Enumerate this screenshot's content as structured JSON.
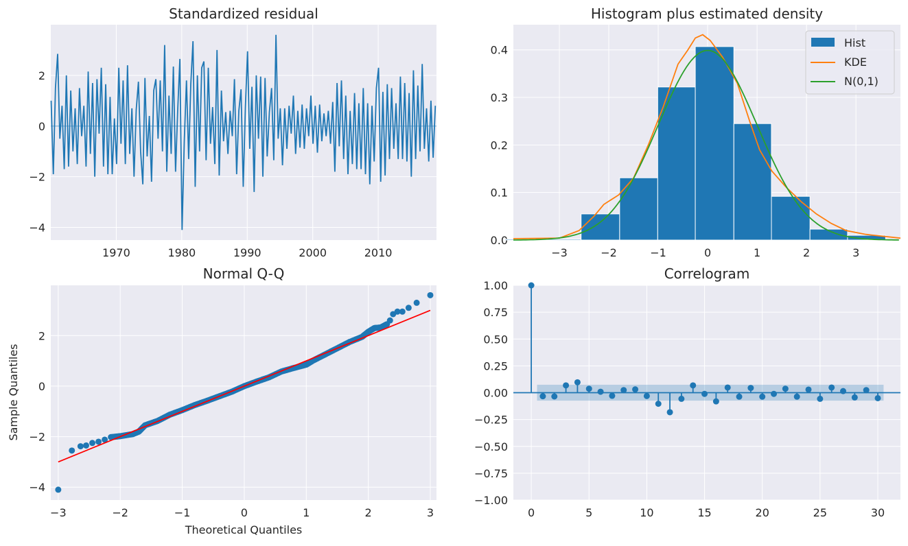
{
  "chart_data": [
    {
      "type": "line",
      "title": "Standardized residual",
      "xlabel": "",
      "ylabel": "",
      "xlim": [
        1960,
        2018.9
      ],
      "ylim": [
        -4.5,
        4.0
      ],
      "xticks": [
        1970,
        1980,
        1990,
        2000,
        2010
      ],
      "yticks": [
        -4,
        -2,
        0,
        2
      ],
      "grid": true,
      "color": "#1f77b4",
      "values_by_year": {
        "1960": [
          1.0,
          -1.9,
          1.5
        ],
        "1961": [
          2.85,
          -0.5,
          0.8
        ],
        "1962": [
          -1.7,
          2.0,
          -1.6
        ],
        "1963": [
          1.4,
          -1.0,
          0.7
        ],
        "1964": [
          -1.5,
          1.5,
          -0.4
        ],
        "1965": [
          0.8,
          -1.6,
          2.15
        ],
        "1966": [
          -1.1,
          1.7,
          -2.0
        ],
        "1967": [
          1.85,
          -0.3,
          2.3
        ],
        "1968": [
          -1.6,
          1.65,
          -1.9
        ],
        "1969": [
          1.15,
          -1.9,
          0.3
        ],
        "1970": [
          -1.5,
          2.3,
          -0.7
        ],
        "1971": [
          1.8,
          -1.5,
          2.4
        ],
        "1972": [
          -1.1,
          0.7,
          -2.0
        ],
        "1973": [
          0.65,
          1.75,
          -1.0
        ],
        "1974": [
          -2.3,
          1.9,
          -1.2
        ],
        "1975": [
          0.4,
          -2.2,
          1.4
        ],
        "1976": [
          1.85,
          -0.5,
          1.8
        ],
        "1977": [
          -1.0,
          3.2,
          -1.8
        ],
        "1978": [
          1.2,
          -1.1,
          2.35
        ],
        "1979": [
          -1.8,
          0.6,
          2.65
        ],
        "1980": [
          -4.1,
          -0.6,
          1.8
        ],
        "1981": [
          -1.3,
          1.65,
          3.35
        ],
        "1982": [
          -2.4,
          2.0,
          -1.0
        ],
        "1983": [
          2.3,
          2.55,
          -1.35
        ],
        "1984": [
          2.3,
          -0.7,
          0.75
        ],
        "1985": [
          -1.5,
          3.0,
          -1.95
        ],
        "1986": [
          1.4,
          -0.6,
          0.55
        ],
        "1987": [
          -1.1,
          0.6,
          -0.4
        ],
        "1988": [
          1.85,
          -1.9,
          0.6
        ],
        "1989": [
          1.45,
          -2.4,
          0.7
        ],
        "1990": [
          2.95,
          -0.9,
          1.55
        ],
        "1991": [
          -2.6,
          2.0,
          -0.5
        ],
        "1992": [
          1.95,
          -2.0,
          1.9
        ],
        "1993": [
          -1.2,
          0.55,
          1.5
        ],
        "1994": [
          -1.35,
          3.6,
          -0.5
        ],
        "1995": [
          0.7,
          -1.55,
          0.7
        ],
        "1996": [
          -0.9,
          0.8,
          -0.3
        ],
        "1997": [
          1.2,
          -1.1,
          0.6
        ],
        "1998": [
          -0.85,
          0.85,
          -0.9
        ],
        "1999": [
          0.7,
          -0.4,
          1.2
        ],
        "2000": [
          -0.7,
          0.8,
          -1.05
        ],
        "2001": [
          0.85,
          -0.6,
          0.5
        ],
        "2002": [
          -0.4,
          0.6,
          -0.7
        ],
        "2003": [
          0.95,
          -1.8,
          1.7
        ],
        "2004": [
          -0.8,
          1.8,
          -1.3
        ],
        "2005": [
          1.2,
          -1.9,
          0.6
        ],
        "2006": [
          -1.5,
          1.3,
          -1.7
        ],
        "2007": [
          0.9,
          -1.7,
          1.5
        ],
        "2008": [
          -1.9,
          0.9,
          -2.3
        ],
        "2009": [
          0.8,
          -1.4,
          1.5
        ],
        "2010": [
          2.3,
          -2.2,
          1.35
        ],
        "2011": [
          -1.95,
          1.65,
          -1.3
        ],
        "2012": [
          1.5,
          -0.9,
          0.9
        ],
        "2013": [
          -1.3,
          1.95,
          -1.3
        ],
        "2014": [
          1.7,
          -1.4,
          1.3
        ],
        "2015": [
          -2.0,
          2.2,
          -1.3
        ],
        "2016": [
          1.6,
          -1.0,
          2.45
        ],
        "2017": [
          -0.9,
          0.7,
          -1.4
        ],
        "2018": [
          1.0,
          -1.25,
          0.8
        ]
      }
    },
    {
      "type": "bar+line",
      "title": "Histogram plus estimated density",
      "xlim": [
        -3.93,
        3.9
      ],
      "ylim": [
        0,
        0.453
      ],
      "xticks": [
        -3,
        -2,
        -1,
        0,
        1,
        2,
        3
      ],
      "yticks": [
        0.0,
        0.1,
        0.2,
        0.3,
        0.4
      ],
      "grid": true,
      "legend_position": "top-right",
      "legend": [
        "Hist",
        "KDE",
        "N(0,1)"
      ],
      "colors": {
        "hist": "#1f77b4",
        "kde": "#ff7f0e",
        "normal": "#2ca02c"
      },
      "hist": {
        "bin_edges": [
          -4.1,
          -3.33,
          -2.56,
          -1.78,
          -1.01,
          -0.25,
          0.53,
          1.29,
          2.07,
          2.83,
          3.6
        ],
        "densities": [
          0.002,
          0.002,
          0.055,
          0.131,
          0.322,
          0.407,
          0.245,
          0.092,
          0.023,
          0.01
        ]
      },
      "kde": {
        "x": [
          -3.93,
          -3.0,
          -2.6,
          -2.3,
          -2.1,
          -1.8,
          -1.5,
          -1.2,
          -0.9,
          -0.6,
          -0.4,
          -0.25,
          -0.1,
          0.05,
          0.3,
          0.6,
          0.85,
          1.05,
          1.3,
          1.6,
          1.9,
          2.2,
          2.5,
          2.8,
          3.2,
          3.9
        ],
        "y": [
          0.003,
          0.004,
          0.02,
          0.05,
          0.075,
          0.095,
          0.13,
          0.2,
          0.28,
          0.37,
          0.4,
          0.425,
          0.432,
          0.42,
          0.385,
          0.33,
          0.25,
          0.19,
          0.145,
          0.11,
          0.08,
          0.055,
          0.035,
          0.02,
          0.012,
          0.004
        ]
      },
      "normal": {
        "mean": 0,
        "sd": 1
      }
    },
    {
      "type": "scatter",
      "title": "Normal Q-Q",
      "xlabel": "Theoretical Quantiles",
      "ylabel": "Sample Quantiles",
      "xlim": [
        -3.12,
        3.1
      ],
      "ylim": [
        -4.51,
        3.99
      ],
      "xticks": [
        -3,
        -2,
        -1,
        0,
        1,
        2,
        3
      ],
      "yticks": [
        -4,
        -2,
        0,
        2
      ],
      "grid": true,
      "colors": {
        "points": "#1f77b4",
        "reference": "#ff0000"
      },
      "reference_line": {
        "x": [
          -3,
          3
        ],
        "y": [
          -3,
          3
        ]
      },
      "points": [
        [
          -3.0,
          -4.1
        ],
        [
          -2.78,
          -2.55
        ],
        [
          -2.64,
          -2.38
        ],
        [
          -2.55,
          -2.35
        ],
        [
          -2.45,
          -2.25
        ],
        [
          -2.35,
          -2.2
        ],
        [
          -2.25,
          -2.12
        ],
        [
          -2.15,
          -2.02
        ],
        [
          -2.0,
          -1.98
        ],
        [
          -1.8,
          -1.9
        ],
        [
          -1.7,
          -1.8
        ],
        [
          -1.6,
          -1.55
        ],
        [
          -1.4,
          -1.38
        ],
        [
          -1.2,
          -1.13
        ],
        [
          -1.0,
          -0.95
        ],
        [
          -0.8,
          -0.75
        ],
        [
          -0.6,
          -0.58
        ],
        [
          -0.4,
          -0.4
        ],
        [
          -0.2,
          -0.22
        ],
        [
          0.0,
          0.0
        ],
        [
          0.2,
          0.18
        ],
        [
          0.4,
          0.35
        ],
        [
          0.6,
          0.58
        ],
        [
          0.8,
          0.72
        ],
        [
          1.0,
          0.85
        ],
        [
          1.1,
          1.0
        ],
        [
          1.3,
          1.25
        ],
        [
          1.5,
          1.5
        ],
        [
          1.7,
          1.75
        ],
        [
          1.9,
          1.95
        ],
        [
          2.0,
          2.15
        ],
        [
          2.1,
          2.3
        ],
        [
          2.2,
          2.32
        ],
        [
          2.3,
          2.45
        ],
        [
          2.35,
          2.6
        ],
        [
          2.4,
          2.85
        ],
        [
          2.47,
          2.95
        ],
        [
          2.55,
          2.95
        ],
        [
          2.65,
          3.1
        ],
        [
          2.78,
          3.3
        ],
        [
          3.0,
          3.6
        ]
      ]
    },
    {
      "type": "stem",
      "title": "Correlogram",
      "xlim": [
        -1.55,
        31.96
      ],
      "ylim": [
        -1.0,
        1.0
      ],
      "xticks": [
        0,
        5,
        10,
        15,
        20,
        25,
        30
      ],
      "yticks": [
        -1.0,
        -0.75,
        -0.5,
        -0.25,
        0.0,
        0.25,
        0.5,
        0.75,
        1.0
      ],
      "ytick_labels": [
        "−1.00",
        "−0.75",
        "−0.50",
        "−0.25",
        "0.00",
        "0.25",
        "0.50",
        "0.75",
        "1.00"
      ],
      "grid": true,
      "color": "#1f77b4",
      "lags": [
        0,
        1,
        2,
        3,
        4,
        5,
        6,
        7,
        8,
        9,
        10,
        11,
        12,
        13,
        14,
        15,
        16,
        17,
        18,
        19,
        20,
        21,
        22,
        23,
        24,
        25,
        26,
        27,
        28,
        29,
        30
      ],
      "acf": [
        1.0,
        -0.033,
        -0.035,
        0.068,
        0.097,
        0.037,
        0.009,
        -0.029,
        0.024,
        0.031,
        -0.031,
        -0.103,
        -0.182,
        -0.057,
        0.068,
        -0.011,
        -0.081,
        0.048,
        -0.037,
        0.044,
        -0.037,
        -0.011,
        0.037,
        -0.037,
        0.029,
        -0.057,
        0.048,
        0.015,
        -0.044,
        0.024,
        -0.051
      ],
      "confidence_band": 0.074
    }
  ]
}
